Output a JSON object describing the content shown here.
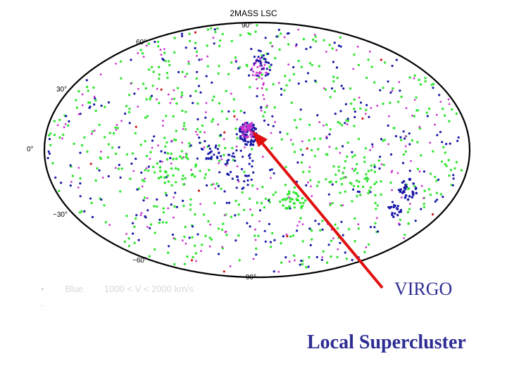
{
  "map": {
    "title": "2MASS LSC",
    "lat_labels": [
      "90°",
      "60°",
      "30°",
      "0°",
      "−30°",
      "−60°",
      "−90°"
    ],
    "colors": {
      "green": "#33e633",
      "blue": "#1a1aa8",
      "magenta": "#cc33cc",
      "red": "#cc1a1a",
      "arrow": "#e01010",
      "outline": "#000000"
    }
  },
  "legend": {
    "bullet": "•",
    "color_name": "Blue",
    "velocity_range": "1000 < V < 2000 km/s",
    "bullet2": "•"
  },
  "annotation": {
    "virgo": "VIRGO",
    "local_supercluster": "Local Supercluster"
  }
}
